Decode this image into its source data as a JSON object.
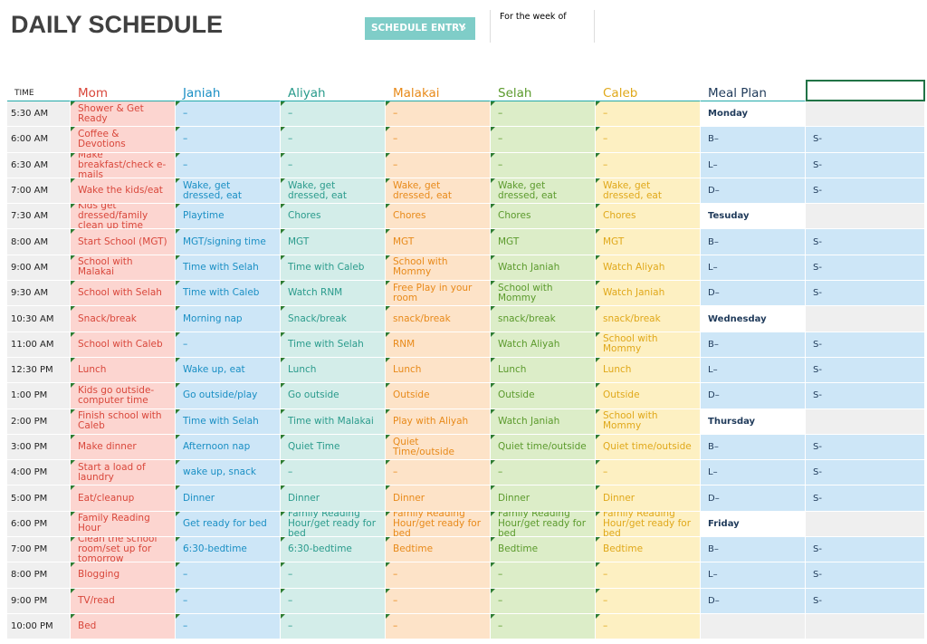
{
  "header": {
    "title": "DAILY SCHEDULE",
    "button": "SCHEDULE ENTRY",
    "button_icon": "›",
    "week_label": "For the week of"
  },
  "table": {
    "columns": [
      "TIME",
      "Mom",
      "Janiah",
      "Aliyah",
      "Malakai",
      "Selah",
      "Caleb",
      "Meal Plan"
    ],
    "rows": [
      {
        "time": "5:30 AM",
        "cells": [
          "Shower & Get Ready",
          "–",
          "–",
          "–",
          "–",
          "–"
        ],
        "meal": "Monday"
      },
      {
        "time": "6:00 AM",
        "cells": [
          "Coffee & Devotions",
          "–",
          "–",
          "–",
          "–",
          "–"
        ],
        "meal": "B–",
        "side": "S-"
      },
      {
        "time": "6:30 AM",
        "cells": [
          "Make breakfast/check e-mails",
          "–",
          "–",
          "–",
          "–",
          "–"
        ],
        "meal": "L–",
        "side": "S-"
      },
      {
        "time": "7:00 AM",
        "cells": [
          "Wake the kids/eat",
          "Wake, get dressed, eat",
          "Wake, get dressed, eat",
          "Wake, get dressed, eat",
          "Wake, get dressed, eat",
          "Wake, get dressed, eat"
        ],
        "meal": "D–",
        "side": "S-"
      },
      {
        "time": "7:30 AM",
        "cells": [
          "Kids get dressed/family clean up time",
          "Playtime",
          "Chores",
          "Chores",
          "Chores",
          "Chores"
        ],
        "meal": "Tesuday"
      },
      {
        "time": "8:00 AM",
        "cells": [
          "Start School (MGT)",
          "MGT/signing time",
          "MGT",
          "MGT",
          "MGT",
          "MGT"
        ],
        "meal": "B–",
        "side": "S-"
      },
      {
        "time": "9:00 AM",
        "cells": [
          "School with Malakai",
          "Time with Selah",
          "Time with Caleb",
          "School with Mommy",
          "Watch Janiah",
          "Watch Aliyah"
        ],
        "meal": "L–",
        "side": "S-"
      },
      {
        "time": "9:30 AM",
        "cells": [
          "School with Selah",
          "Time with Caleb",
          "Watch RNM",
          "Free Play in your room",
          "School with Mommy",
          "Watch Janiah"
        ],
        "meal": "D–",
        "side": "S-"
      },
      {
        "time": "10:30 AM",
        "cells": [
          "Snack/break",
          "Morning nap",
          "Snack/break",
          "snack/break",
          "snack/break",
          "snack/break"
        ],
        "meal": "Wednesday"
      },
      {
        "time": "11:00 AM",
        "cells": [
          "School with Caleb",
          "–",
          "Time with Selah",
          "RNM",
          "Watch Aliyah",
          "School with Mommy"
        ],
        "meal": "B–",
        "side": "S-"
      },
      {
        "time": "12:30 PM",
        "cells": [
          "Lunch",
          "Wake up, eat",
          "Lunch",
          "Lunch",
          "Lunch",
          "Lunch"
        ],
        "meal": "L–",
        "side": "S-"
      },
      {
        "time": "1:00 PM",
        "cells": [
          "Kids go outside-computer time",
          "Go outside/play",
          "Go outside",
          "Outside",
          "Outside",
          "Outside"
        ],
        "meal": "D–",
        "side": "S-"
      },
      {
        "time": "2:00 PM",
        "cells": [
          "Finish school with Caleb",
          "Time with Selah",
          "Time with Malakai",
          "Play with Aliyah",
          "Watch Janiah",
          "School with Mommy"
        ],
        "meal": "Thursday"
      },
      {
        "time": "3:00 PM",
        "cells": [
          "Make dinner",
          "Afternoon nap",
          "Quiet Time",
          "Quiet Time/outside",
          "Quiet time/outside",
          "Quiet time/outside"
        ],
        "meal": "B–",
        "side": "S-"
      },
      {
        "time": "4:00 PM",
        "cells": [
          "Start a load of laundry",
          "wake up, snack",
          "–",
          "–",
          "–",
          "–"
        ],
        "meal": "L–",
        "side": "S-"
      },
      {
        "time": "5:00 PM",
        "cells": [
          "Eat/cleanup",
          "Dinner",
          "Dinner",
          "Dinner",
          "Dinner",
          "Dinner"
        ],
        "meal": "D–",
        "side": "S-"
      },
      {
        "time": "6:00 PM",
        "cells": [
          "Family Reading Hour",
          "Get ready for bed",
          "Family Reading Hour/get ready for bed",
          "Family Reading Hour/get ready for bed",
          "Family Reading Hour/get ready for bed",
          "Family Reading Hour/get ready for bed"
        ],
        "meal": "Friday"
      },
      {
        "time": "7:00 PM",
        "cells": [
          "Clean the school room/set up for tomorrow",
          "6:30-bedtime",
          "6:30-bedtime",
          "Bedtime",
          "Bedtime",
          "Bedtime"
        ],
        "meal": "B–",
        "side": "S-"
      },
      {
        "time": "8:00 PM",
        "cells": [
          "Blogging",
          "–",
          "–",
          "–",
          "–",
          "–"
        ],
        "meal": "L–",
        "side": "S-"
      },
      {
        "time": "9:00 PM",
        "cells": [
          "TV/read",
          "–",
          "–",
          "–",
          "–",
          "–"
        ],
        "meal": "D–",
        "side": "S-"
      },
      {
        "time": "10:00 PM",
        "cells": [
          "Bed",
          "–",
          "–",
          "–",
          "–",
          "–"
        ]
      }
    ]
  }
}
